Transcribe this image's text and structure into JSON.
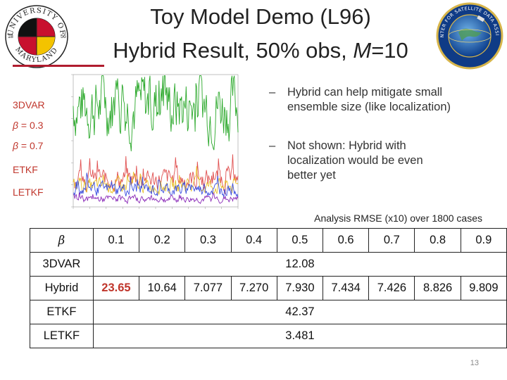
{
  "title": {
    "line1": "Toy Model Demo (L96)",
    "line2_prefix": "Hybrid Result, 50% obs, ",
    "line2_var": "M",
    "line2_suffix": "=10"
  },
  "logos": {
    "left": {
      "name": "umd-seal-icon",
      "text": "UNIVERSITY OF MARYLAND",
      "year_left": "18",
      "year_right": "56"
    },
    "right": {
      "name": "jcsda-seal-icon",
      "text": "JOINT CENTER FOR SATELLITE DATA ASSIMILATION"
    }
  },
  "legend": [
    {
      "label": "3DVAR",
      "color": "#c0362c",
      "beta": false
    },
    {
      "label_prefix": "β",
      "label_suffix": " = 0.3",
      "color": "#c0362c",
      "beta": true
    },
    {
      "label_prefix": "β",
      "label_suffix": " = 0.7",
      "color": "#c0362c",
      "beta": true
    },
    {
      "label": "ETKF",
      "color": "#c0362c",
      "beta": false
    },
    {
      "label": "LETKF",
      "color": "#c0362c",
      "beta": false
    }
  ],
  "chart_data": {
    "type": "line",
    "series": [
      {
        "color": "#2aa82a",
        "mean": 4.6,
        "spread": 1.1
      },
      {
        "color": "#e05050",
        "mean": 1.25,
        "spread": 0.35
      },
      {
        "color": "#e8c230",
        "mean": 0.95,
        "spread": 0.25
      },
      {
        "color": "#3a4ee0",
        "mean": 0.8,
        "spread": 0.22
      },
      {
        "color": "#8a2ab8",
        "mean": 0.35,
        "spread": 0.12
      }
    ],
    "ylim": [
      0,
      6
    ],
    "xlim": [
      0,
      1800
    ]
  },
  "bullets": [
    {
      "dash": "–",
      "text": "Hybrid can help mitigate small ensemble size (like localization)"
    },
    {
      "dash": "–",
      "text": "Not shown: Hybrid with localization would be even better yet"
    }
  ],
  "caption": "Analysis RMSE (x10) over 1800 cases",
  "table": {
    "header_label": "β",
    "columns": [
      "0.1",
      "0.2",
      "0.3",
      "0.4",
      "0.5",
      "0.6",
      "0.7",
      "0.8",
      "0.9"
    ],
    "rows": {
      "3dvar": {
        "label": "3DVAR",
        "value": "12.08"
      },
      "hybrid": {
        "label": "Hybrid",
        "values": [
          "23.65",
          "10.64",
          "7.077",
          "7.270",
          "7.930",
          "7.434",
          "7.426",
          "8.826",
          "9.809"
        ]
      },
      "etkf": {
        "label": "ETKF",
        "value": "42.37"
      },
      "letkf": {
        "label": "LETKF",
        "value": "3.481"
      }
    }
  },
  "page_number": "13"
}
